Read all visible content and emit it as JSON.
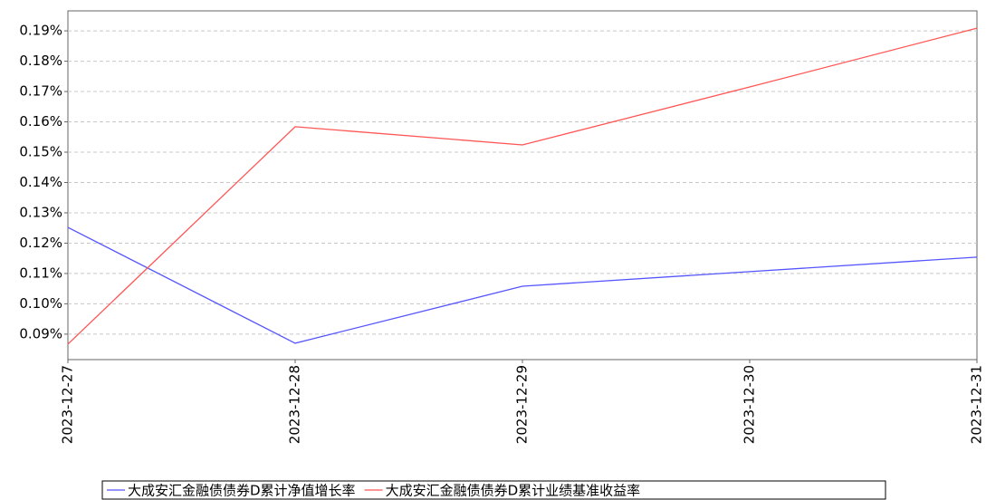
{
  "chart_data": {
    "type": "line",
    "x": [
      "2023-12-27",
      "2023-12-28",
      "2023-12-29",
      "2023-12-30",
      "2023-12-31"
    ],
    "series": [
      {
        "name": "大成安汇金融债债券D累计净值增长率",
        "color": "#5555ff",
        "values": [
          0.1252,
          0.087,
          0.1058,
          0.1106,
          0.1154
        ]
      },
      {
        "name": "大成安汇金融债债券D累计业绩基准收益率",
        "color": "#ff5555",
        "values": [
          0.0867,
          0.1584,
          0.1524,
          0.1715,
          0.1909
        ]
      }
    ],
    "ylim": [
      0.0816,
      0.1966
    ],
    "yticks": [
      {
        "value": 0.09,
        "label": "0.09%"
      },
      {
        "value": 0.1,
        "label": "0.10%"
      },
      {
        "value": 0.11,
        "label": "0.11%"
      },
      {
        "value": 0.12,
        "label": "0.12%"
      },
      {
        "value": 0.13,
        "label": "0.13%"
      },
      {
        "value": 0.14,
        "label": "0.14%"
      },
      {
        "value": 0.15,
        "label": "0.15%"
      },
      {
        "value": 0.16,
        "label": "0.16%"
      },
      {
        "value": 0.17,
        "label": "0.17%"
      },
      {
        "value": 0.18,
        "label": "0.18%"
      },
      {
        "value": 0.19,
        "label": "0.19%"
      }
    ],
    "grid": true
  }
}
